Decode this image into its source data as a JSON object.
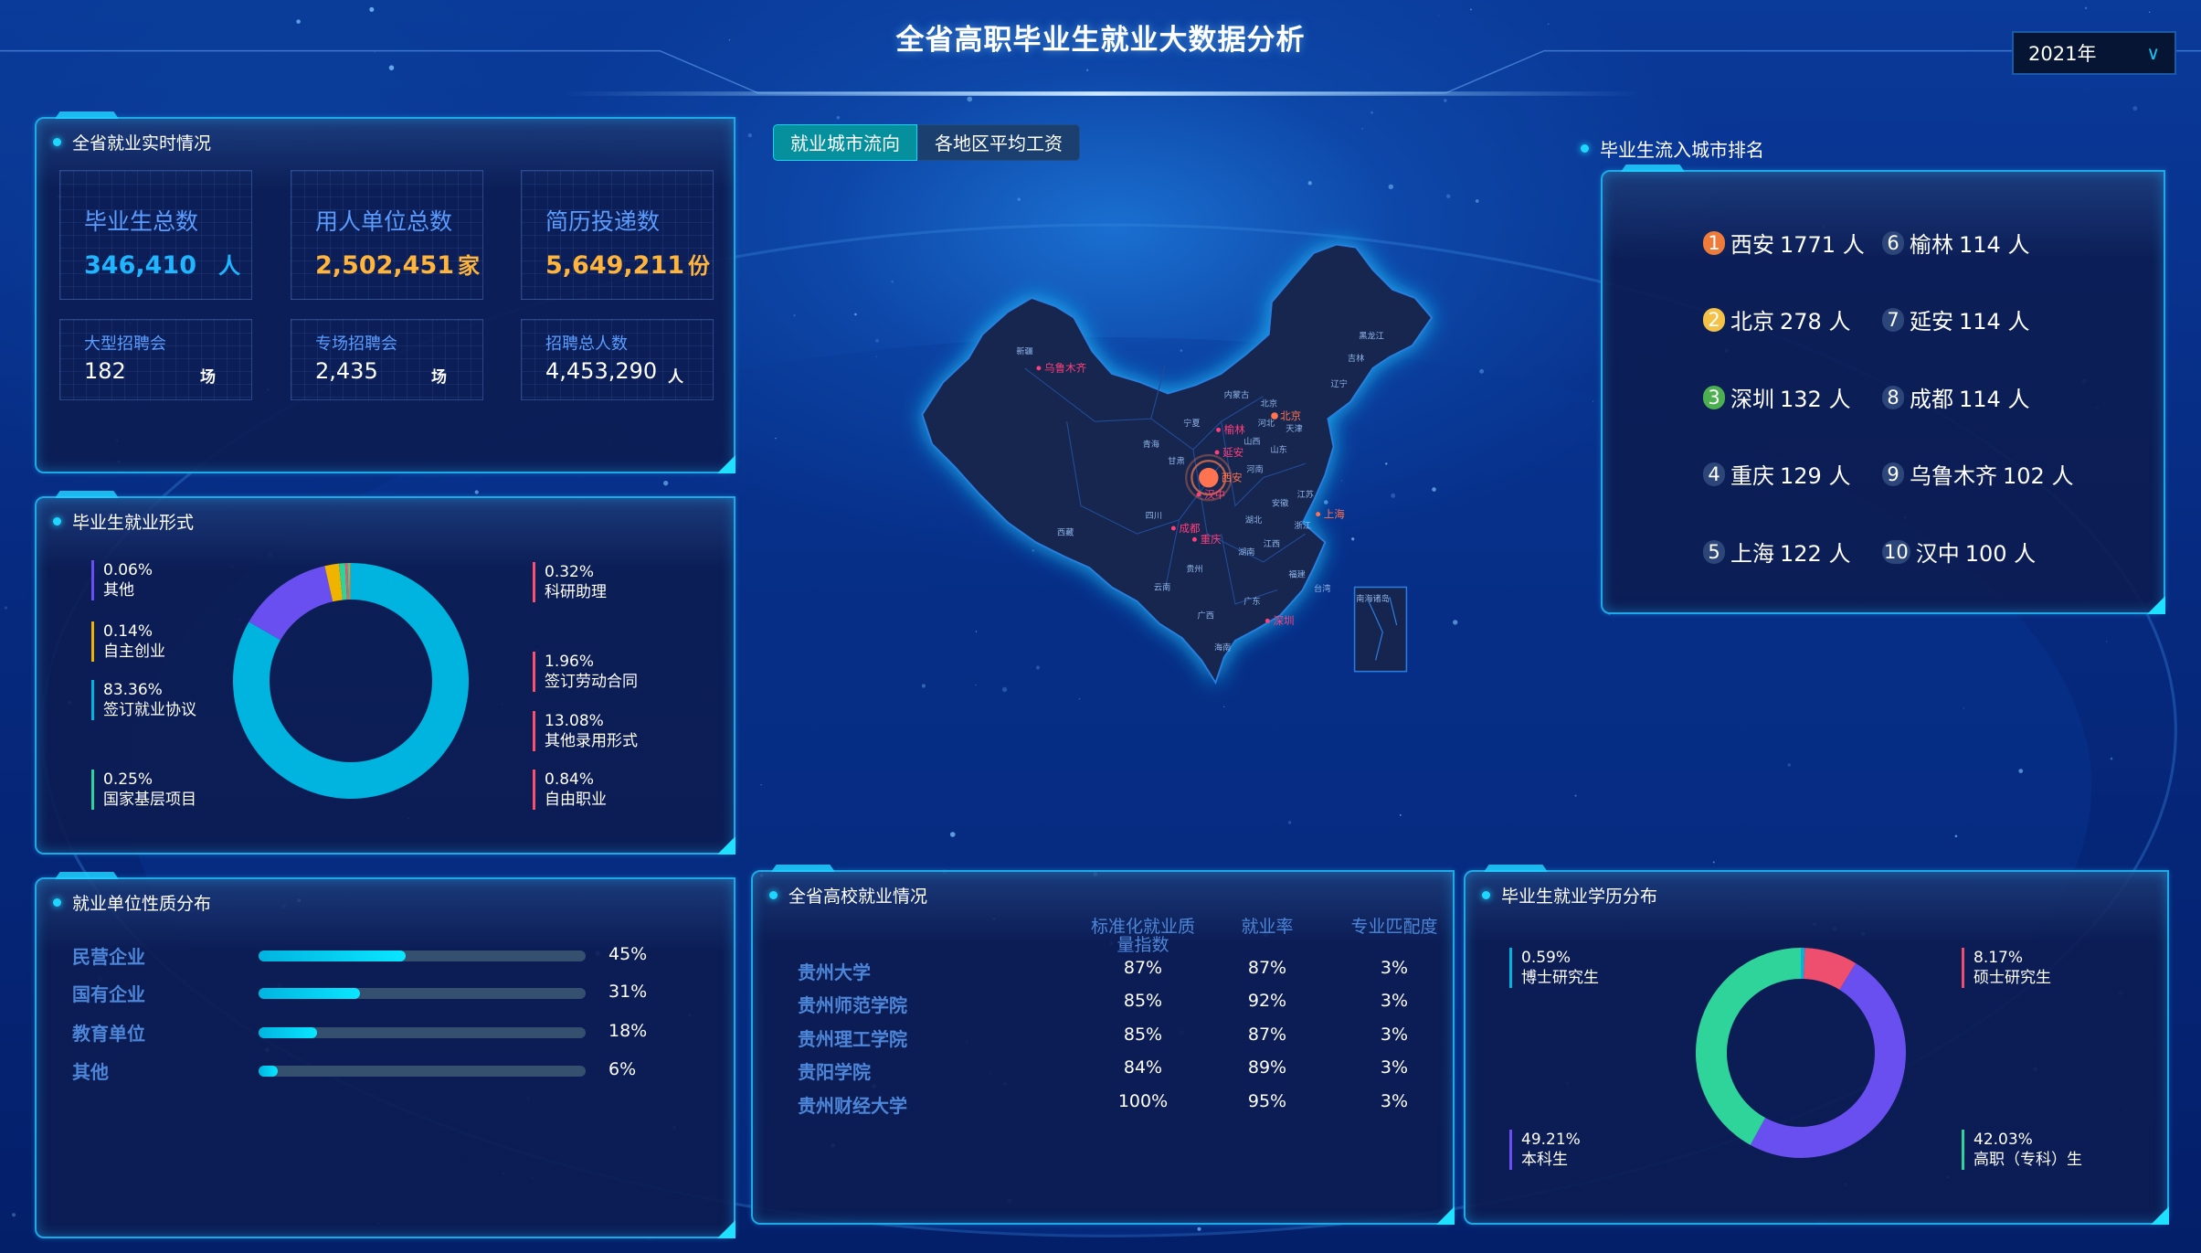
{
  "header": {
    "title": "全省高职毕业生就业大数据分析",
    "year_select": "2021年"
  },
  "realtime": {
    "title": "全省就业实时情况",
    "big": [
      {
        "label": "毕业生总数",
        "value": "346,410",
        "unit": "人",
        "color": "#1fb6ff"
      },
      {
        "label": "用人单位总数",
        "value": "2,502,451",
        "unit": "家",
        "color": "#ffb43c"
      },
      {
        "label": "简历投递数",
        "value": "5,649,211",
        "unit": "份",
        "color": "#ffb43c"
      }
    ],
    "small": [
      {
        "label": "大型招聘会",
        "value": "182",
        "unit": "场"
      },
      {
        "label": "专场招聘会",
        "value": "2,435",
        "unit": "场"
      },
      {
        "label": "招聘总人数",
        "value": "4,453,290",
        "unit": "人"
      }
    ]
  },
  "forms": {
    "title": "毕业生就业形式",
    "slices": [
      {
        "name": "签订就业协议",
        "value": 83.36,
        "pct": "83.36%",
        "color": "#00b4e0",
        "ring": "#00b4e0"
      },
      {
        "name": "其他录用形式",
        "value": 13.08,
        "pct": "13.08%",
        "color": "#ff4f6e",
        "ring": "#6a4ff0"
      },
      {
        "name": "签订劳动合同",
        "value": 1.96,
        "pct": "1.96%",
        "color": "#ff4f6e",
        "ring": "#f0b400"
      },
      {
        "name": "自由职业",
        "value": 0.84,
        "pct": "0.84%",
        "color": "#ff4f6e",
        "ring": "#2bd49a"
      },
      {
        "name": "科研助理",
        "value": 0.32,
        "pct": "0.32%",
        "color": "#ff4f6e",
        "ring": "#ff4f6e"
      },
      {
        "name": "国家基层项目",
        "value": 0.25,
        "pct": "0.25%",
        "color": "#2bd49a",
        "ring": "#2bd49a"
      },
      {
        "name": "自主创业",
        "value": 0.14,
        "pct": "0.14%",
        "color": "#f0b400",
        "ring": "#f0b400"
      },
      {
        "name": "其他",
        "value": 0.06,
        "pct": "0.06%",
        "color": "#6a4ff0",
        "ring": "#6a4ff0"
      }
    ]
  },
  "unit_types": {
    "title": "就业单位性质分布",
    "items": [
      {
        "label": "民营企业",
        "value": 45,
        "text": "45%"
      },
      {
        "label": "国有企业",
        "value": 31,
        "text": "31%"
      },
      {
        "label": "教育单位",
        "value": 18,
        "text": "18%"
      },
      {
        "label": "其他",
        "value": 6,
        "text": "6%"
      }
    ]
  },
  "tabs": [
    "就业城市流向",
    "各地区平均工资"
  ],
  "map": {
    "center_city": "西安",
    "cities": [
      "乌鲁木齐",
      "北京",
      "榆林",
      "延安",
      "西安",
      "汉中",
      "成都",
      "重庆",
      "上海",
      "深圳"
    ],
    "provinces": [
      "新疆",
      "西藏",
      "青海",
      "甘肃",
      "宁夏",
      "内蒙古",
      "四川",
      "云南",
      "贵州",
      "广西",
      "广东",
      "湖南",
      "湖北",
      "江西",
      "福建",
      "浙江",
      "安徽",
      "江苏",
      "山东",
      "河南",
      "河北",
      "山西",
      "北京",
      "天津",
      "辽宁",
      "吉林",
      "黑龙江",
      "台湾",
      "海南",
      "南海诸岛"
    ]
  },
  "ranking": {
    "title": "毕业生流入城市排名",
    "items": [
      {
        "rank": "1",
        "city": "西安",
        "count": "1771 人",
        "badge": "#ef7b3a"
      },
      {
        "rank": "2",
        "city": "北京",
        "count": "278 人",
        "badge": "#f4c247"
      },
      {
        "rank": "3",
        "city": "深圳",
        "count": "132 人",
        "badge": "#4caf50"
      },
      {
        "rank": "4",
        "city": "重庆",
        "count": "129 人",
        "badge": "#2c4679"
      },
      {
        "rank": "5",
        "city": "上海",
        "count": "122 人",
        "badge": "#2c4679"
      },
      {
        "rank": "6",
        "city": "榆林",
        "count": "114 人",
        "badge": "#2c4679"
      },
      {
        "rank": "7",
        "city": "延安",
        "count": "114 人",
        "badge": "#2c4679"
      },
      {
        "rank": "8",
        "city": "成都",
        "count": "114 人",
        "badge": "#2c4679"
      },
      {
        "rank": "9",
        "city": "乌鲁木齐",
        "count": "102 人",
        "badge": "#2c4679"
      },
      {
        "rank": "10",
        "city": "汉中",
        "count": "100 人",
        "badge": "#2c4679"
      }
    ]
  },
  "schools": {
    "title": "全省高校就业情况",
    "headers": [
      "标准化就业质量指数",
      "就业率",
      "专业匹配度"
    ],
    "rows": [
      [
        "贵州大学",
        "87%",
        "87%",
        "3%"
      ],
      [
        "贵州师范学院",
        "85%",
        "92%",
        "3%"
      ],
      [
        "贵州理工学院",
        "85%",
        "87%",
        "3%"
      ],
      [
        "贵阳学院",
        "84%",
        "89%",
        "3%"
      ],
      [
        "贵州财经大学",
        "100%",
        "95%",
        "3%"
      ]
    ]
  },
  "education": {
    "title": "毕业生就业学历分布",
    "slices": [
      {
        "name": "博士研究生",
        "value": 0.59,
        "pct": "0.59%",
        "color": "#00b4e0"
      },
      {
        "name": "硕士研究生",
        "value": 8.17,
        "pct": "8.17%",
        "color": "#ef4f6e"
      },
      {
        "name": "本科生",
        "value": 49.21,
        "pct": "49.21%",
        "color": "#6a4ff0"
      },
      {
        "name": "高职（专科）生",
        "value": 42.03,
        "pct": "42.03%",
        "color": "#2fd49a"
      }
    ]
  }
}
